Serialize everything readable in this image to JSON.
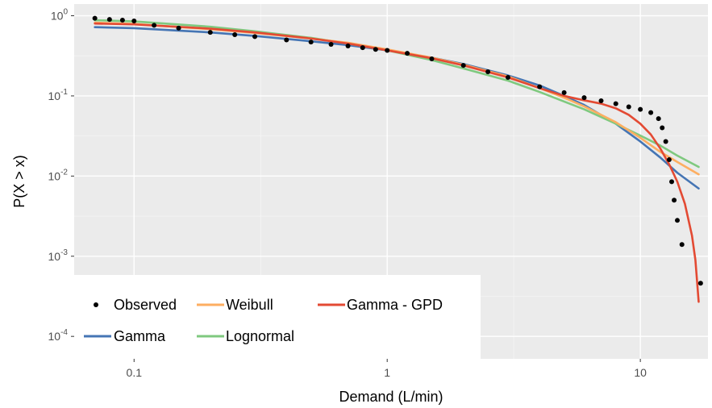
{
  "chart_data": {
    "type": "line",
    "xlabel": "Demand (L/min)",
    "ylabel": "P(X > x)",
    "x_scale": "log10",
    "y_scale": "log10",
    "xlim": [
      0.058,
      18.5
    ],
    "ylim": [
      5.25e-05,
      1.4
    ],
    "grid": true,
    "legend_position": "bottom-left",
    "x_ticks": [
      {
        "value": 0.1,
        "label": "0.1"
      },
      {
        "value": 1,
        "label": "1"
      },
      {
        "value": 10,
        "label": "10"
      }
    ],
    "y_ticks": [
      {
        "value": 1,
        "base": "10",
        "exp": "0"
      },
      {
        "value": 0.1,
        "base": "10",
        "exp": "-1"
      },
      {
        "value": 0.01,
        "base": "10",
        "exp": "-2"
      },
      {
        "value": 0.001,
        "base": "10",
        "exp": "-3"
      },
      {
        "value": 0.0001,
        "base": "10",
        "exp": "-4"
      }
    ],
    "series": [
      {
        "name": "Observed",
        "kind": "points",
        "color": "#000000",
        "points": [
          [
            0.07,
            0.93
          ],
          [
            0.08,
            0.9
          ],
          [
            0.09,
            0.88
          ],
          [
            0.1,
            0.86
          ],
          [
            0.12,
            0.76
          ],
          [
            0.15,
            0.7
          ],
          [
            0.2,
            0.62
          ],
          [
            0.25,
            0.58
          ],
          [
            0.3,
            0.55
          ],
          [
            0.4,
            0.5
          ],
          [
            0.5,
            0.47
          ],
          [
            0.6,
            0.44
          ],
          [
            0.7,
            0.42
          ],
          [
            0.8,
            0.4
          ],
          [
            0.9,
            0.38
          ],
          [
            1.0,
            0.37
          ],
          [
            1.2,
            0.34
          ],
          [
            1.5,
            0.29
          ],
          [
            2.0,
            0.24
          ],
          [
            2.5,
            0.2
          ],
          [
            3.0,
            0.17
          ],
          [
            4.0,
            0.13
          ],
          [
            5.0,
            0.11
          ],
          [
            6.0,
            0.095
          ],
          [
            7.0,
            0.087
          ],
          [
            8.0,
            0.08
          ],
          [
            9.0,
            0.073
          ],
          [
            10.0,
            0.068
          ],
          [
            11.0,
            0.062
          ],
          [
            11.8,
            0.052
          ],
          [
            12.2,
            0.04
          ],
          [
            12.6,
            0.027
          ],
          [
            13.0,
            0.016
          ],
          [
            13.3,
            0.0085
          ],
          [
            13.6,
            0.005
          ],
          [
            14.0,
            0.0028
          ],
          [
            14.6,
            0.0014
          ],
          [
            17.3,
            0.00046
          ]
        ]
      },
      {
        "name": "Gamma",
        "kind": "line",
        "color": "#4575b4",
        "points": [
          [
            0.07,
            0.72
          ],
          [
            0.1,
            0.7
          ],
          [
            0.2,
            0.62
          ],
          [
            0.3,
            0.56
          ],
          [
            0.5,
            0.48
          ],
          [
            0.7,
            0.43
          ],
          [
            1.0,
            0.37
          ],
          [
            1.5,
            0.3
          ],
          [
            2.0,
            0.25
          ],
          [
            3.0,
            0.18
          ],
          [
            4.0,
            0.135
          ],
          [
            5.0,
            0.1
          ],
          [
            6.0,
            0.077
          ],
          [
            8.0,
            0.045
          ],
          [
            10.0,
            0.027
          ],
          [
            12.0,
            0.017
          ],
          [
            14.0,
            0.011
          ],
          [
            17.0,
            0.007
          ]
        ]
      },
      {
        "name": "Weibull",
        "kind": "line",
        "color": "#fdae61",
        "points": [
          [
            0.07,
            0.82
          ],
          [
            0.1,
            0.79
          ],
          [
            0.2,
            0.68
          ],
          [
            0.3,
            0.61
          ],
          [
            0.5,
            0.52
          ],
          [
            0.7,
            0.46
          ],
          [
            1.0,
            0.38
          ],
          [
            1.5,
            0.3
          ],
          [
            2.0,
            0.245
          ],
          [
            3.0,
            0.175
          ],
          [
            4.0,
            0.125
          ],
          [
            5.0,
            0.095
          ],
          [
            6.0,
            0.074
          ],
          [
            8.0,
            0.047
          ],
          [
            10.0,
            0.03
          ],
          [
            12.0,
            0.02
          ],
          [
            14.0,
            0.015
          ],
          [
            17.0,
            0.0105
          ]
        ]
      },
      {
        "name": "Lognormal",
        "kind": "line",
        "color": "#7fc97f",
        "points": [
          [
            0.07,
            0.88
          ],
          [
            0.1,
            0.85
          ],
          [
            0.2,
            0.73
          ],
          [
            0.3,
            0.64
          ],
          [
            0.5,
            0.53
          ],
          [
            0.7,
            0.45
          ],
          [
            1.0,
            0.37
          ],
          [
            1.5,
            0.28
          ],
          [
            2.0,
            0.22
          ],
          [
            3.0,
            0.155
          ],
          [
            4.0,
            0.112
          ],
          [
            5.0,
            0.085
          ],
          [
            6.0,
            0.068
          ],
          [
            8.0,
            0.045
          ],
          [
            10.0,
            0.032
          ],
          [
            12.0,
            0.024
          ],
          [
            14.0,
            0.018
          ],
          [
            17.0,
            0.013
          ]
        ]
      },
      {
        "name": "Gamma - GPD",
        "kind": "line",
        "color": "#e34a33",
        "points": [
          [
            0.07,
            0.8
          ],
          [
            0.1,
            0.78
          ],
          [
            0.2,
            0.69
          ],
          [
            0.3,
            0.62
          ],
          [
            0.5,
            0.52
          ],
          [
            0.7,
            0.45
          ],
          [
            1.0,
            0.37
          ],
          [
            1.5,
            0.295
          ],
          [
            2.0,
            0.24
          ],
          [
            3.0,
            0.17
          ],
          [
            4.0,
            0.125
          ],
          [
            5.0,
            0.1
          ],
          [
            6.0,
            0.088
          ],
          [
            7.0,
            0.08
          ],
          [
            8.0,
            0.07
          ],
          [
            9.0,
            0.058
          ],
          [
            10.0,
            0.045
          ],
          [
            11.0,
            0.033
          ],
          [
            12.0,
            0.022
          ],
          [
            13.0,
            0.014
          ],
          [
            14.0,
            0.0085
          ],
          [
            15.0,
            0.0045
          ],
          [
            16.0,
            0.0018
          ],
          [
            16.5,
            0.0009
          ],
          [
            17.0,
            0.00027
          ]
        ]
      }
    ]
  }
}
